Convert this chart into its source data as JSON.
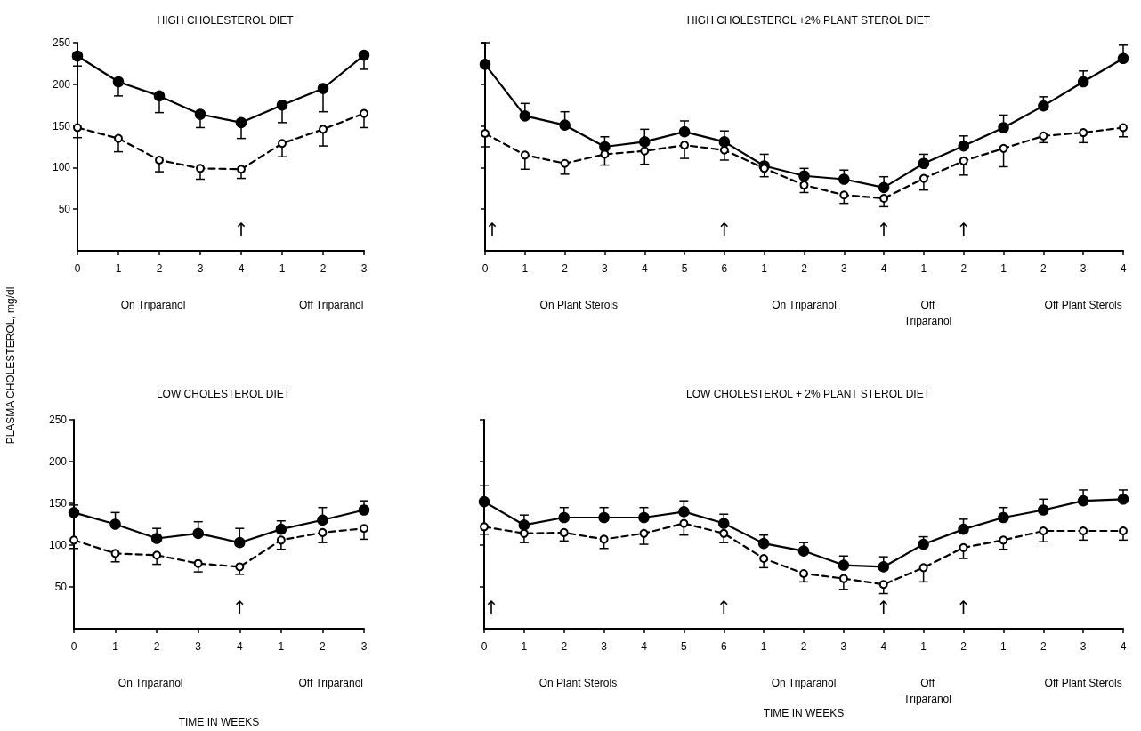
{
  "chart_data": [
    {
      "type": "line",
      "title": "HIGH CHOLESTEROL DIET",
      "ylabel": "PLASMA CHOLESTEROL, mg/dl",
      "categories": [
        "0",
        "1",
        "2",
        "3",
        "4",
        "1",
        "2",
        "3"
      ],
      "ylim": [
        0,
        250
      ],
      "yticks": [
        50,
        100,
        150,
        200,
        250
      ],
      "grid": false,
      "marker": "circle",
      "series": [
        {
          "color": "#000000",
          "line_style": "solid",
          "values": [
            234,
            203,
            186,
            164,
            154,
            175,
            195,
            235
          ],
          "errors": [
            [
              222,
              234
            ],
            [
              186,
              203
            ],
            [
              166,
              186
            ],
            [
              148,
              164
            ],
            [
              135,
              154
            ],
            [
              154,
              175
            ],
            [
              167,
              195
            ],
            [
              218,
              235
            ]
          ]
        },
        {
          "color": "#000000",
          "line_style": "dashed",
          "values": [
            148,
            135,
            109,
            99,
            98,
            129,
            146,
            165
          ],
          "errors": [
            [
              136,
              148
            ],
            [
              119,
              135
            ],
            [
              95,
              109
            ],
            [
              86,
              99
            ],
            [
              87,
              98
            ],
            [
              113,
              129
            ],
            [
              126,
              146
            ],
            [
              148,
              165
            ]
          ]
        }
      ],
      "annotations": [
        "↑",
        "On Triparanol",
        "Off Triparanol"
      ]
    },
    {
      "type": "line",
      "title": "HIGH CHOLESTEROL +2% PLANT STEROL DIET",
      "categories": [
        "0",
        "1",
        "2",
        "3",
        "4",
        "5",
        "6",
        "1",
        "2",
        "3",
        "4",
        "1",
        "2",
        "1",
        "2",
        "3",
        "4"
      ],
      "ylim": [
        0,
        250
      ],
      "yticks": [
        50,
        100,
        150,
        200,
        250
      ],
      "tick_labels": "x",
      "grid": false,
      "marker": "circle",
      "series": [
        {
          "color": "#000000",
          "line_style": "solid",
          "values": [
            224,
            162,
            151,
            125,
            131,
            143,
            131,
            102,
            90,
            86,
            76,
            105,
            126,
            148,
            174,
            203,
            231
          ],
          "errors": [
            [
              224,
              250
            ],
            [
              162,
              177
            ],
            [
              151,
              167
            ],
            [
              125,
              137
            ],
            [
              131,
              146
            ],
            [
              143,
              156
            ],
            [
              131,
              144
            ],
            [
              102,
              116
            ],
            [
              90,
              99
            ],
            [
              86,
              97
            ],
            [
              76,
              89
            ],
            [
              105,
              116
            ],
            [
              126,
              138
            ],
            [
              148,
              163
            ],
            [
              174,
              185
            ],
            [
              203,
              216
            ],
            [
              231,
              247
            ]
          ]
        },
        {
          "color": "#000000",
          "line_style": "dashed",
          "values": [
            141,
            115,
            105,
            116,
            120,
            127,
            121,
            99,
            79,
            67,
            63,
            87,
            108,
            123,
            138,
            142,
            148
          ],
          "errors": [
            [
              125,
              141
            ],
            [
              98,
              115
            ],
            [
              92,
              105
            ],
            [
              103,
              116
            ],
            [
              104,
              120
            ],
            [
              111,
              127
            ],
            [
              109,
              121
            ],
            [
              89,
              99
            ],
            [
              70,
              79
            ],
            [
              57,
              67
            ],
            [
              53,
              63
            ],
            [
              73,
              87
            ],
            [
              91,
              108
            ],
            [
              101,
              123
            ],
            [
              130,
              138
            ],
            [
              130,
              142
            ],
            [
              137,
              148
            ]
          ]
        }
      ],
      "annotations": [
        "↑",
        "↑",
        "↑",
        "↑",
        "On Plant Sterols",
        "On Triparanol",
        "Off Triparanol",
        "Off Plant Sterols"
      ]
    },
    {
      "type": "line",
      "title": "LOW CHOLESTEROL DIET",
      "xlabel": "TIME IN WEEKS",
      "categories": [
        "0",
        "1",
        "2",
        "3",
        "4",
        "1",
        "2",
        "3"
      ],
      "ylim": [
        0,
        250
      ],
      "yticks": [
        50,
        100,
        150,
        200,
        250
      ],
      "grid": false,
      "marker": "circle",
      "series": [
        {
          "color": "#000000",
          "line_style": "solid",
          "values": [
            139,
            125,
            108,
            114,
            103,
            119,
            130,
            142
          ],
          "errors": [
            [
              139,
              148
            ],
            [
              125,
              139
            ],
            [
              108,
              120
            ],
            [
              114,
              128
            ],
            [
              103,
              120
            ],
            [
              119,
              129
            ],
            [
              130,
              145
            ],
            [
              142,
              153
            ]
          ]
        },
        {
          "color": "#000000",
          "line_style": "dashed",
          "values": [
            106,
            90,
            88,
            78,
            74,
            106,
            115,
            120
          ],
          "errors": [
            [
              96,
              106
            ],
            [
              80,
              90
            ],
            [
              77,
              88
            ],
            [
              68,
              78
            ],
            [
              65,
              74
            ],
            [
              95,
              106
            ],
            [
              103,
              115
            ],
            [
              107,
              120
            ]
          ]
        }
      ],
      "annotations": [
        "↑",
        "On Triparanol",
        "Off Triparanol"
      ]
    },
    {
      "type": "line",
      "title": "LOW CHOLESTEROL + 2% PLANT STEROL DIET",
      "xlabel": "TIME IN WEEKS",
      "categories": [
        "0",
        "1",
        "2",
        "3",
        "4",
        "5",
        "6",
        "1",
        "2",
        "3",
        "4",
        "1",
        "2",
        "1",
        "2",
        "3",
        "4"
      ],
      "ylim": [
        0,
        250
      ],
      "yticks": [
        50,
        100,
        150,
        200,
        250
      ],
      "tick_labels": "x",
      "grid": false,
      "marker": "circle",
      "series": [
        {
          "color": "#000000",
          "line_style": "solid",
          "values": [
            152,
            124,
            133,
            133,
            133,
            140,
            126,
            102,
            93,
            76,
            74,
            101,
            119,
            133,
            142,
            153,
            155
          ],
          "errors": [
            [
              152,
              171
            ],
            [
              124,
              136
            ],
            [
              133,
              145
            ],
            [
              133,
              145
            ],
            [
              133,
              145
            ],
            [
              140,
              153
            ],
            [
              126,
              137
            ],
            [
              102,
              112
            ],
            [
              93,
              103
            ],
            [
              76,
              87
            ],
            [
              74,
              86
            ],
            [
              101,
              110
            ],
            [
              119,
              131
            ],
            [
              133,
              145
            ],
            [
              142,
              155
            ],
            [
              153,
              166
            ],
            [
              155,
              166
            ]
          ]
        },
        {
          "color": "#000000",
          "line_style": "dashed",
          "values": [
            122,
            114,
            115,
            107,
            114,
            126,
            114,
            84,
            66,
            60,
            53,
            73,
            97,
            106,
            117,
            117,
            117
          ],
          "errors": [
            [
              113,
              122
            ],
            [
              103,
              114
            ],
            [
              105,
              115
            ],
            [
              96,
              107
            ],
            [
              101,
              114
            ],
            [
              112,
              126
            ],
            [
              103,
              114
            ],
            [
              73,
              84
            ],
            [
              56,
              66
            ],
            [
              47,
              60
            ],
            [
              42,
              53
            ],
            [
              56,
              73
            ],
            [
              84,
              97
            ],
            [
              95,
              106
            ],
            [
              104,
              117
            ],
            [
              106,
              117
            ],
            [
              106,
              117
            ]
          ]
        }
      ],
      "annotations": [
        "↑",
        "↑",
        "↑",
        "↑",
        "On Plant Sterols",
        "On Triparanol",
        "Off Triparanol",
        "Off Plant Sterols"
      ]
    }
  ]
}
